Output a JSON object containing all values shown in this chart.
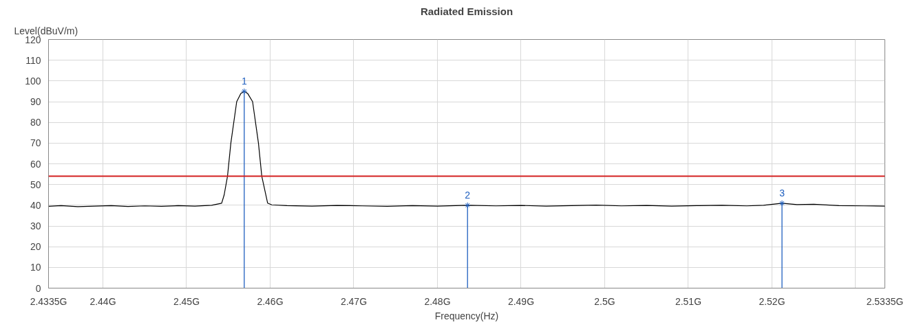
{
  "chart_data": {
    "type": "line",
    "title": "Radiated Emission",
    "xlabel": "Frequency(Hz)",
    "ylabel": "Level(dBuV/m)",
    "xlim": [
      2.4335,
      2.5335
    ],
    "ylim": [
      0,
      120
    ],
    "xticks": [
      {
        "value": 2.4335,
        "label": "2.4335G"
      },
      {
        "value": 2.44,
        "label": "2.44G"
      },
      {
        "value": 2.45,
        "label": "2.45G"
      },
      {
        "value": 2.46,
        "label": "2.46G"
      },
      {
        "value": 2.47,
        "label": "2.47G"
      },
      {
        "value": 2.48,
        "label": "2.48G"
      },
      {
        "value": 2.49,
        "label": "2.49G"
      },
      {
        "value": 2.5,
        "label": "2.5G"
      },
      {
        "value": 2.51,
        "label": "2.51G"
      },
      {
        "value": 2.52,
        "label": "2.52G"
      },
      {
        "value": 2.53,
        "label": null
      },
      {
        "value": 2.5335,
        "label": "2.5335G"
      }
    ],
    "yticks": [
      0,
      10,
      20,
      30,
      40,
      50,
      60,
      70,
      80,
      90,
      100,
      110,
      120
    ],
    "grid": true,
    "series": [
      {
        "color": "#000000",
        "x": [
          2.4335,
          2.435,
          2.437,
          2.439,
          2.441,
          2.443,
          2.445,
          2.447,
          2.449,
          2.451,
          2.453,
          2.4542,
          2.4545,
          2.4549,
          2.4553,
          2.456,
          2.4565,
          2.4569,
          2.4573,
          2.4579,
          2.4586,
          2.459,
          2.4597,
          2.4602,
          2.462,
          2.465,
          2.468,
          2.471,
          2.474,
          2.477,
          2.48,
          2.4836,
          2.487,
          2.49,
          2.493,
          2.496,
          2.499,
          2.502,
          2.505,
          2.508,
          2.511,
          2.514,
          2.517,
          2.519,
          2.5212,
          2.523,
          2.525,
          2.528,
          2.531,
          2.5335
        ],
        "values": [
          39.5,
          39.8,
          39.3,
          39.6,
          39.8,
          39.4,
          39.7,
          39.5,
          39.8,
          39.6,
          40.0,
          41,
          45,
          54,
          70,
          90,
          94,
          95,
          94,
          90,
          70,
          54,
          41,
          40.2,
          39.8,
          39.6,
          39.9,
          39.7,
          39.5,
          39.8,
          39.6,
          40,
          39.7,
          39.9,
          39.6,
          39.8,
          40.1,
          39.7,
          39.9,
          39.6,
          39.8,
          40.0,
          39.7,
          40.0,
          41,
          40.3,
          40.5,
          39.8,
          39.7,
          39.6
        ]
      },
      {
        "type": "lollipop",
        "color": "#1f5fbf",
        "marker": "cross",
        "x": [
          2.4569,
          2.4836,
          2.5212
        ],
        "values": [
          95,
          40,
          41
        ]
      }
    ],
    "ref_lines": [
      {
        "axis": "y",
        "value": 54,
        "color": "#d42020"
      }
    ],
    "annotations": [
      {
        "text": "1",
        "x": 2.4569,
        "y": 95
      },
      {
        "text": "2",
        "x": 2.4836,
        "y": 40
      },
      {
        "text": "3",
        "x": 2.5212,
        "y": 41
      }
    ]
  }
}
